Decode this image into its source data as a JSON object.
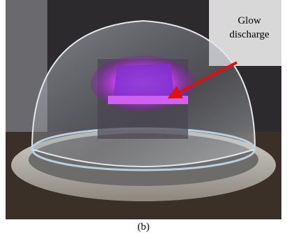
{
  "annotation": {
    "lines": [
      "Glow",
      "discharge"
    ]
  },
  "caption": "(b)"
}
